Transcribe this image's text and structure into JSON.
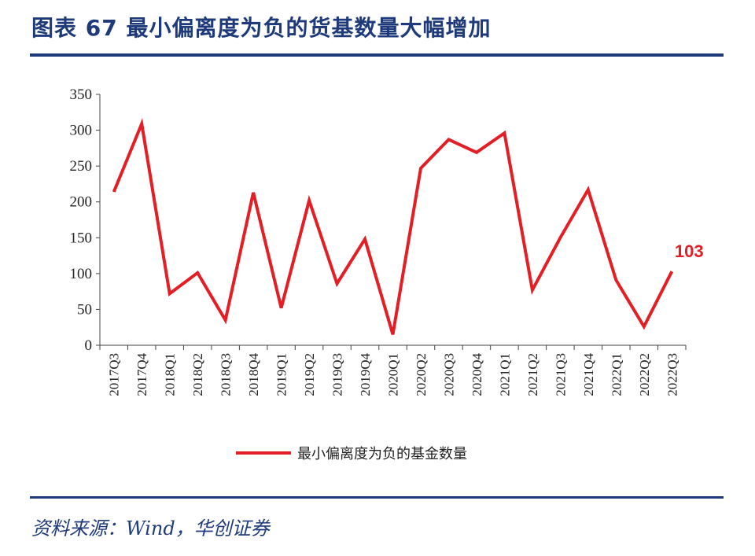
{
  "header": {
    "title": "图表 67  最小偏离度为负的货基数量大幅增加"
  },
  "footer": {
    "source": "资料来源：Wind，华创证券"
  },
  "chart_data": {
    "type": "line",
    "title": "",
    "xlabel": "",
    "ylabel": "",
    "ylim": [
      0,
      350
    ],
    "yticks": [
      0,
      50,
      100,
      150,
      200,
      250,
      300,
      350
    ],
    "categories": [
      "2017Q3",
      "2017Q4",
      "2018Q1",
      "2018Q2",
      "2018Q3",
      "2018Q4",
      "2019Q1",
      "2019Q2",
      "2019Q3",
      "2019Q4",
      "2020Q1",
      "2020Q2",
      "2020Q3",
      "2020Q4",
      "2021Q1",
      "2021Q2",
      "2021Q3",
      "2021Q4",
      "2022Q1",
      "2022Q2",
      "2022Q3"
    ],
    "series": [
      {
        "name": "最小偏离度为负的基金数量",
        "color": "#e31e24",
        "values": [
          214,
          309,
          72,
          101,
          35,
          213,
          52,
          202,
          86,
          148,
          15,
          247,
          287,
          269,
          296,
          77,
          150,
          217,
          91,
          26,
          103
        ]
      }
    ],
    "annotations": [
      {
        "text": "103",
        "category": "2022Q3"
      }
    ],
    "legend": "bottom",
    "grid": false
  }
}
